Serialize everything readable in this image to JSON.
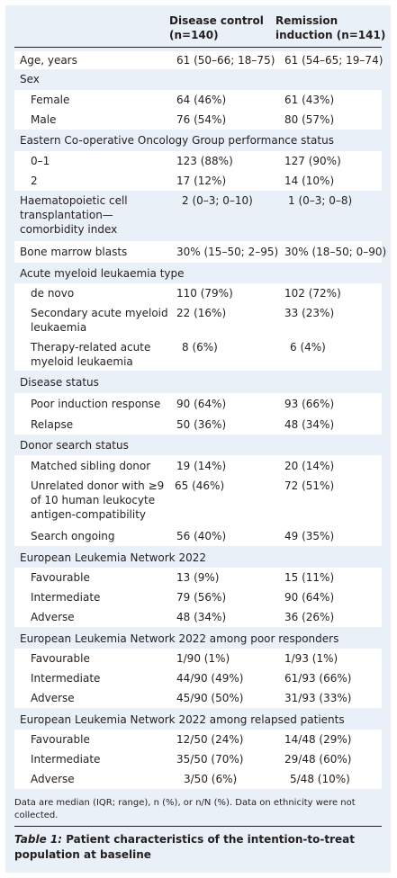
{
  "header": {
    "col1": "Disease control\n(n=140)",
    "col2": "Remission\ninduction (n=141)"
  },
  "rows": [
    {
      "label": "Age, years",
      "v1": "61 (50–66; 18–75)",
      "v2": "61 (54–65; 19–74)"
    },
    {
      "label": "Sex",
      "v1": "",
      "v2": ""
    },
    {
      "label": "Female",
      "v1": "64 (46%)",
      "v2": "61 (43%)"
    },
    {
      "label": "Male",
      "v1": "76 (54%)",
      "v2": "80 (57%)"
    },
    {
      "label": "Eastern Co-operative Oncology Group performance status",
      "v1": "",
      "v2": ""
    },
    {
      "label": "0–1",
      "v1": "123 (88%)",
      "v2": "127 (90%)"
    },
    {
      "label": "2",
      "v1": "17 (12%)",
      "v2": "14 (10%)"
    },
    {
      "label": "Haematopoietic cell\ntransplantation—\ncomorbidity index",
      "v1": "2 (0–3; 0–10)",
      "v2": "1 (0–3; 0–8)"
    },
    {
      "label": "Bone marrow blasts",
      "v1": "30% (15–50; 2–95)",
      "v2": "30% (18–50; 0–90)"
    },
    {
      "label": "Acute myeloid leukaemia type",
      "v1": "",
      "v2": ""
    },
    {
      "label": "de novo",
      "v1": "110 (79%)",
      "v2": "102 (72%)"
    },
    {
      "label": "Secondary acute myeloid\nleukaemia",
      "v1": "22 (16%)",
      "v2": "33 (23%)"
    },
    {
      "label": "Therapy-related acute\nmyeloid leukaemia",
      "v1": "8 (6%)",
      "v2": "6 (4%)"
    },
    {
      "label": "Disease status",
      "v1": "",
      "v2": ""
    },
    {
      "label": "Poor induction response",
      "v1": "90 (64%)",
      "v2": "93 (66%)"
    },
    {
      "label": "Relapse",
      "v1": "50 (36%)",
      "v2": "48 (34%)"
    },
    {
      "label": "Donor search status",
      "v1": "",
      "v2": ""
    },
    {
      "label": "Matched sibling donor",
      "v1": "19 (14%)",
      "v2": "20 (14%)"
    },
    {
      "label": "Unrelated donor with ≥9\nof 10 human leukocyte\nantigen-compatibility",
      "v1": "65 (46%)",
      "v2": "72 (51%)"
    },
    {
      "label": "Search ongoing",
      "v1": "56 (40%)",
      "v2": "49 (35%)"
    },
    {
      "label": "European Leukemia Network 2022",
      "v1": "",
      "v2": ""
    },
    {
      "label": "Favourable",
      "v1": "13 (9%)",
      "v2": "15 (11%)"
    },
    {
      "label": "Intermediate",
      "v1": "79 (56%)",
      "v2": "90 (64%)"
    },
    {
      "label": "Adverse",
      "v1": "48 (34%)",
      "v2": "36 (26%)"
    },
    {
      "label": "European Leukemia Network 2022 among poor responders",
      "v1": "",
      "v2": ""
    },
    {
      "label": "Favourable",
      "v1": "1/90 (1%)",
      "v2": "1/93 (1%)"
    },
    {
      "label": "Intermediate",
      "v1": "44/90 (49%)",
      "v2": "61/93 (66%)"
    },
    {
      "label": "Adverse",
      "v1": "45/90 (50%)",
      "v2": "31/93 (33%)"
    },
    {
      "label": "European Leukemia Network 2022 among relapsed patients",
      "v1": "",
      "v2": ""
    },
    {
      "label": "Favourable",
      "v1": "12/50 (24%)",
      "v2": "14/48 (29%)"
    },
    {
      "label": "Intermediate",
      "v1": "35/50 (70%)",
      "v2": "29/48 (60%)"
    },
    {
      "label": "Adverse",
      "v1": "3/50 (6%)",
      "v2": "5/48 (10%)"
    }
  ],
  "footnote": "Data are median (IQR; range), n (%), or n/N (%). Data on ethnicity were not collected.",
  "caption": {
    "prefix": "Table 1:",
    "text": " Patient characteristics of the intention-to-treat population at baseline"
  },
  "colors": {
    "panel": "#eaf0f8",
    "row_white": "#ffffff",
    "text": "#231f20"
  }
}
